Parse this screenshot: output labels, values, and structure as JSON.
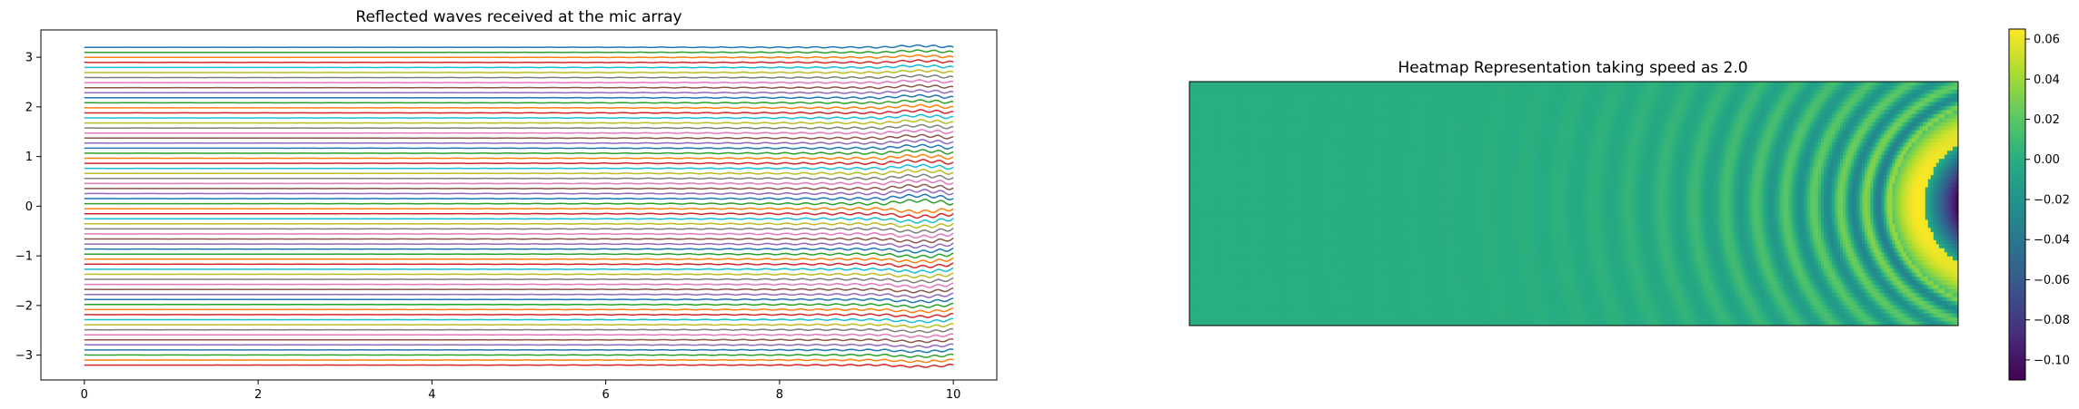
{
  "chart_data": [
    {
      "type": "line",
      "title": "Reflected waves received at the mic array",
      "xlabel": "",
      "ylabel": "",
      "xlim": [
        -0.5,
        10.5
      ],
      "ylim": [
        -3.5,
        3.55
      ],
      "x_ticks": [
        0,
        2,
        4,
        6,
        8,
        10
      ],
      "x_tick_labels": [
        "0",
        "2",
        "4",
        "6",
        "8",
        "10"
      ],
      "y_ticks": [
        -3,
        -2,
        -1,
        0,
        1,
        2,
        3
      ],
      "y_tick_labels": [
        "−3",
        "−2",
        "−1",
        "0",
        "1",
        "2",
        "3"
      ],
      "grid": false,
      "series_count": 64,
      "series_offsets": {
        "start": -3.2,
        "end": 3.2
      },
      "x_range": [
        0,
        10
      ],
      "wave": {
        "amplitude": 0.035,
        "frequency_start": 1.5,
        "frequency_end": 3.5,
        "growth": 4.5,
        "peak_amplitude": 0.06
      },
      "colors": [
        "#d62728",
        "#ff7f0e",
        "#2ca02c",
        "#1f77b4",
        "#9467bd",
        "#8c564b",
        "#e377c2",
        "#7f7f7f",
        "#bcbd22",
        "#17becf"
      ]
    },
    {
      "type": "heatmap",
      "title": "Heatmap Representation taking speed as 2.0",
      "xlabel": "",
      "ylabel": "",
      "colormap": "viridis",
      "colorbar": {
        "min": -0.11,
        "max": 0.065,
        "ticks": [
          0.06,
          0.04,
          0.02,
          0.0,
          -0.02,
          -0.04,
          -0.06,
          -0.08,
          -0.1
        ],
        "tick_labels": [
          "0.06",
          "0.04",
          "0.02",
          "0.00",
          "−0.02",
          "−0.04",
          "−0.06",
          "−0.08",
          "−0.10"
        ]
      },
      "background_value": 0.0,
      "band_count": 26,
      "peak_positive": 0.065,
      "peak_negative": -0.11
    }
  ]
}
